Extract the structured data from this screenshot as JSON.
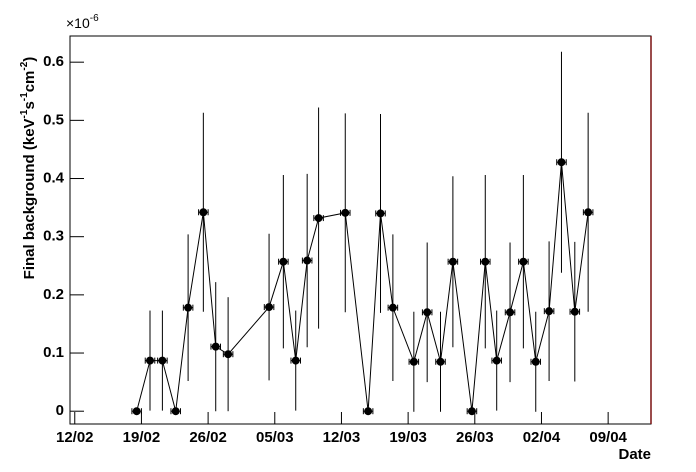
{
  "chart_data": {
    "type": "errorbar",
    "x_label": "Date",
    "y_label_parts": [
      "Final background (keV",
      "-1",
      "s",
      "-1",
      "cm",
      "-2",
      ")"
    ],
    "y_multiplier_base": "×10",
    "y_multiplier_exp": "-6",
    "x": [
      49.5,
      50.9,
      52.2,
      53.6,
      54.9,
      56.5,
      57.8,
      59.1,
      63.4,
      64.9,
      66.2,
      67.4,
      68.6,
      71.4,
      73.8,
      75.1,
      76.4,
      78.6,
      80.0,
      81.4,
      82.7,
      84.7,
      86.1,
      87.3,
      88.7,
      90.1,
      91.4,
      92.8,
      94.1,
      95.5,
      96.9
    ],
    "xerr": [
      0.5,
      0.5,
      0.5,
      0.5,
      0.5,
      0.5,
      0.5,
      0.5,
      0.5,
      0.5,
      0.5,
      0.5,
      0.5,
      0.5,
      0.5,
      0.5,
      0.5,
      0.5,
      0.5,
      0.5,
      0.5,
      0.5,
      0.5,
      0.5,
      0.5,
      0.5,
      0.5,
      0.5,
      0.5,
      0.5,
      0.5
    ],
    "values": [
      0,
      0.087,
      0.087,
      0,
      0.178,
      0.342,
      0.111,
      0.098,
      0.179,
      0.257,
      0.087,
      0.259,
      0.332,
      0.341,
      0,
      0.34,
      0.178,
      0.085,
      0.17,
      0.085,
      0.257,
      0,
      0.257,
      0.087,
      0.17,
      0.257,
      0.085,
      0.172,
      0.428,
      0.171,
      0.342
    ],
    "errors": [
      0,
      0.086,
      0.086,
      0,
      0.126,
      0.171,
      0.111,
      0.098,
      0.126,
      0.149,
      0.086,
      0.149,
      0.19,
      0.171,
      0,
      0.171,
      0.126,
      0.086,
      0.12,
      0.086,
      0.147,
      0,
      0.149,
      0.086,
      0.12,
      0.149,
      0.086,
      0.12,
      0.19,
      0.12,
      0.171
    ],
    "color": "#000000",
    "xlim": [
      42.5,
      103.5
    ],
    "xticks": [
      {
        "value": 43,
        "label": "12/02"
      },
      {
        "value": 50,
        "label": "19/02"
      },
      {
        "value": 57,
        "label": "26/02"
      },
      {
        "value": 64,
        "label": "05/03"
      },
      {
        "value": 71,
        "label": "12/03"
      },
      {
        "value": 78,
        "label": "19/03"
      },
      {
        "value": 85,
        "label": "26/03"
      },
      {
        "value": 92,
        "label": "02/04"
      },
      {
        "value": 99,
        "label": "09/04"
      }
    ],
    "ylim": [
      -0.022,
      0.645
    ],
    "yticks": [
      0,
      0.1,
      0.2,
      0.3,
      0.4,
      0.5,
      0.6
    ]
  }
}
